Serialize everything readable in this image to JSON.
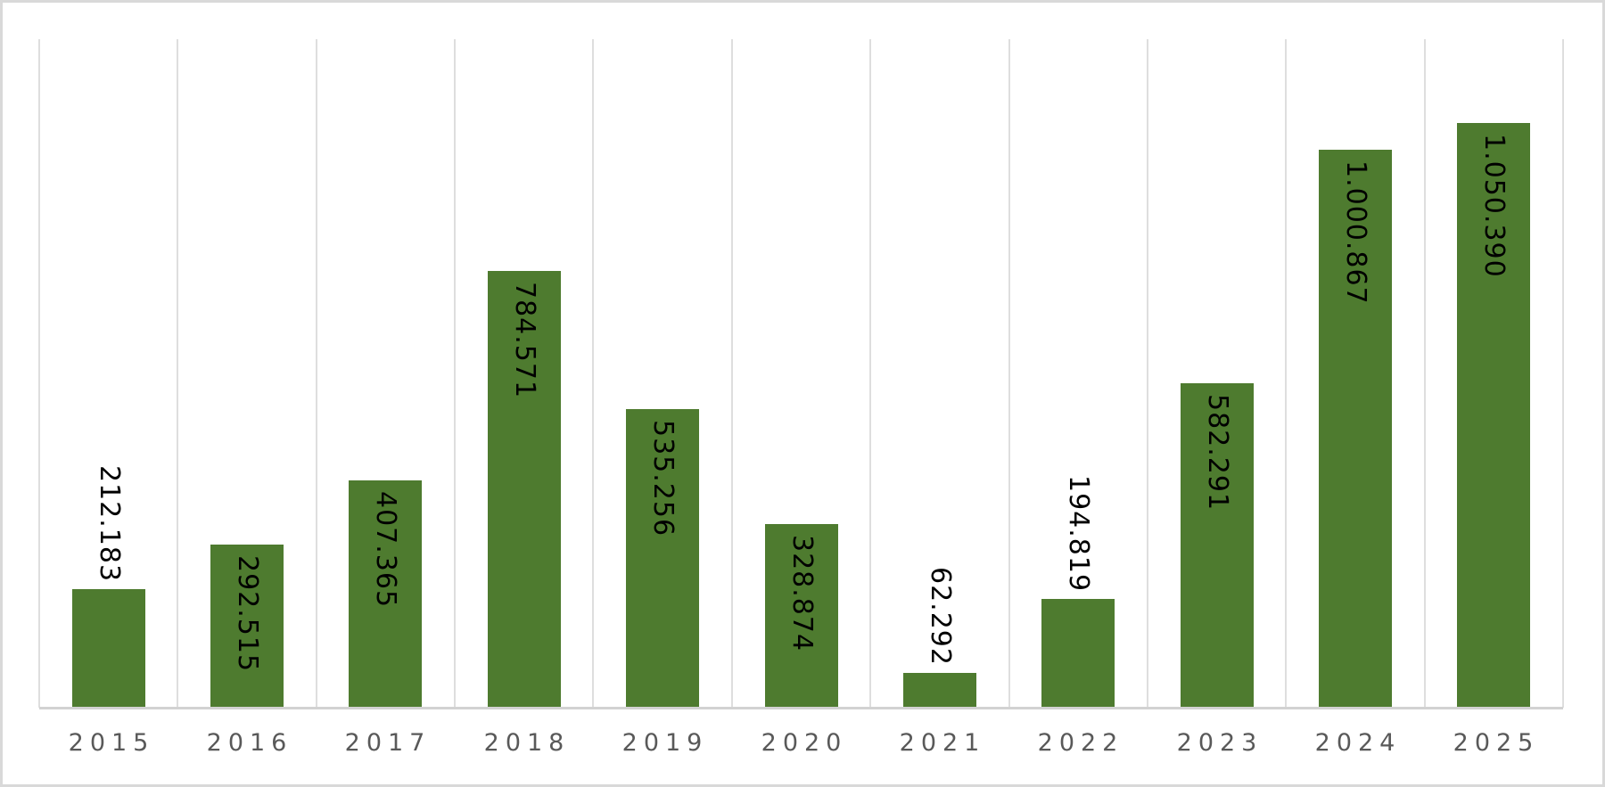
{
  "chart_data": {
    "type": "bar",
    "title": "",
    "xlabel": "",
    "ylabel": "",
    "categories": [
      "2015",
      "2016",
      "2017",
      "2018",
      "2019",
      "2020",
      "2021",
      "2022",
      "2023",
      "2024",
      "2025"
    ],
    "values": [
      212183,
      292515,
      407365,
      784571,
      535256,
      328874,
      62292,
      194819,
      582291,
      1000867,
      1050390
    ],
    "value_labels": [
      "212.183",
      "292.515",
      "407.365",
      "784.571",
      "535.256",
      "328.874",
      "62.292",
      "194.819",
      "582.291",
      "1.000.867",
      "1.050.390"
    ],
    "value_label_rotation_deg": 90,
    "value_label_positions": [
      "outside-end",
      "inside-end",
      "inside-end",
      "inside-end",
      "inside-end",
      "inside-end",
      "outside-end",
      "outside-end",
      "inside-end",
      "inside-end",
      "inside-end"
    ],
    "ylim": [
      0,
      1200000
    ],
    "grid": "vertical-category-separators-only",
    "legend": "none",
    "colors": {
      "bar_fill": "#4e7b2f",
      "value_label_text": "#000000",
      "axis_tick_text": "#595959",
      "gridline": "#dedede",
      "axis_line": "#d2d2d2",
      "outer_border": "#d9d9d9",
      "background": "#ffffff"
    }
  }
}
